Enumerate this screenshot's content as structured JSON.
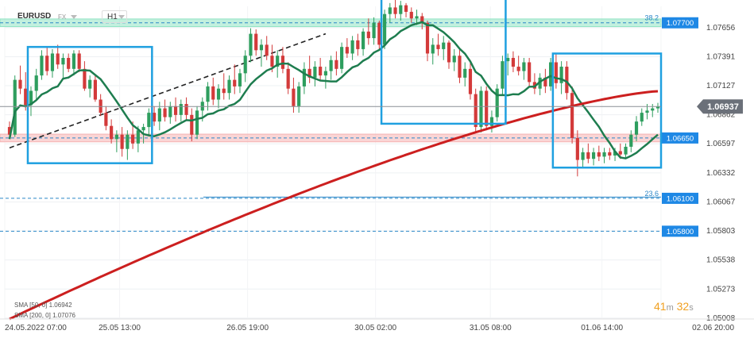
{
  "symbol": "EURUSD",
  "market": "FX",
  "timeframe": "H1",
  "countdown": {
    "minutes": "41",
    "min_unit": "m",
    "seconds": "32",
    "sec_unit": "s"
  },
  "colors": {
    "bull": "#2e9e5e",
    "bear": "#d33a3a",
    "sma50": "#1e7d4f",
    "sma200": "#cc1f1f",
    "box": "#1fa0e0",
    "resistance_zone": "#8fe3c3",
    "support_zone": "#f5b3b3",
    "label_bg": "#1e88e5"
  },
  "chart_data": {
    "type": "candlestick",
    "y_range": [
      1.05,
      1.0785
    ],
    "y_ticks": [
      "1.07656",
      "1.07391",
      "1.07127",
      "1.06862",
      "1.06597",
      "1.06332",
      "1.06067",
      "1.05803",
      "1.05538",
      "1.05273",
      "1.05008"
    ],
    "x_ticks": [
      "24.05.2022  07:00",
      "25.05  13:00",
      "26.05  19:00",
      "30.05  02:00",
      "31.05  08:00",
      "01.06  14:00",
      "02.06  20:00"
    ],
    "last_price": "1.06937",
    "levels": [
      {
        "value": 1.077,
        "label": "1.07700",
        "fib": "38.2"
      },
      {
        "value": 1.0665,
        "label": "1.06650",
        "fib": ""
      },
      {
        "value": 1.061,
        "label": "1.06100",
        "fib": "23.6"
      },
      {
        "value": 1.058,
        "label": "1.05800",
        "fib": ""
      }
    ],
    "indicators": [
      {
        "name": "SMA",
        "params": "[50,  0]",
        "value": "1.06942"
      },
      {
        "name": "SMA",
        "params": "[200,  0]",
        "value": "1.07076"
      }
    ],
    "candles": [
      [
        1.0675,
        1.068,
        1.0665,
        1.0668
      ],
      [
        1.0668,
        1.0722,
        1.0666,
        1.0718
      ],
      [
        1.0718,
        1.0731,
        1.0705,
        1.071
      ],
      [
        1.071,
        1.0725,
        1.069,
        1.0695
      ],
      [
        1.0695,
        1.0712,
        1.0685,
        1.0708
      ],
      [
        1.0708,
        1.0728,
        1.07,
        1.0722
      ],
      [
        1.0722,
        1.0745,
        1.0718,
        1.074
      ],
      [
        1.074,
        1.0748,
        1.0722,
        1.0726
      ],
      [
        1.0726,
        1.0746,
        1.072,
        1.0742
      ],
      [
        1.0742,
        1.075,
        1.0728,
        1.0732
      ],
      [
        1.0732,
        1.0742,
        1.072,
        1.0738
      ],
      [
        1.0738,
        1.0742,
        1.0725,
        1.0728
      ],
      [
        1.0728,
        1.0745,
        1.0722,
        1.0742
      ],
      [
        1.0742,
        1.0745,
        1.0725,
        1.0728
      ],
      [
        1.0728,
        1.0735,
        1.0708,
        1.071
      ],
      [
        1.071,
        1.0722,
        1.0702,
        1.0718
      ],
      [
        1.0718,
        1.0722,
        1.0698,
        1.07
      ],
      [
        1.07,
        1.0705,
        1.0685,
        1.0688
      ],
      [
        1.0688,
        1.0694,
        1.0672,
        1.0676
      ],
      [
        1.0676,
        1.0682,
        1.066,
        1.0664
      ],
      [
        1.0664,
        1.0672,
        1.0652,
        1.0668
      ],
      [
        1.0668,
        1.0675,
        1.0648,
        1.0655
      ],
      [
        1.0655,
        1.0672,
        1.0645,
        1.0668
      ],
      [
        1.0668,
        1.068,
        1.0655,
        1.066
      ],
      [
        1.066,
        1.0676,
        1.0652,
        1.0672
      ],
      [
        1.0672,
        1.0678,
        1.066,
        1.0675
      ],
      [
        1.0675,
        1.0692,
        1.0668,
        1.0688
      ],
      [
        1.0688,
        1.0694,
        1.0676,
        1.068
      ],
      [
        1.068,
        1.0698,
        1.0672,
        1.0692
      ],
      [
        1.0692,
        1.07,
        1.068,
        1.0684
      ],
      [
        1.0684,
        1.0698,
        1.0678,
        1.0694
      ],
      [
        1.0694,
        1.0702,
        1.068,
        1.0686
      ],
      [
        1.0686,
        1.07,
        1.068,
        1.0696
      ],
      [
        1.0696,
        1.0702,
        1.0682,
        1.0686
      ],
      [
        1.0686,
        1.0692,
        1.0662,
        1.0668
      ],
      [
        1.0668,
        1.0694,
        1.0664,
        1.069
      ],
      [
        1.069,
        1.0702,
        1.068,
        1.0698
      ],
      [
        1.0698,
        1.0716,
        1.069,
        1.0712
      ],
      [
        1.0712,
        1.072,
        1.0695,
        1.07
      ],
      [
        1.07,
        1.0714,
        1.0692,
        1.071
      ],
      [
        1.071,
        1.0724,
        1.07,
        1.0706
      ],
      [
        1.0706,
        1.0722,
        1.07,
        1.0718
      ],
      [
        1.0718,
        1.0732,
        1.0705,
        1.0712
      ],
      [
        1.0712,
        1.0728,
        1.0706,
        1.0724
      ],
      [
        1.0724,
        1.0745,
        1.0716,
        1.074
      ],
      [
        1.074,
        1.0765,
        1.0734,
        1.076
      ],
      [
        1.076,
        1.0764,
        1.074,
        1.0745
      ],
      [
        1.0745,
        1.0755,
        1.073,
        1.075
      ],
      [
        1.075,
        1.0758,
        1.0736,
        1.074
      ],
      [
        1.074,
        1.075,
        1.0725,
        1.073
      ],
      [
        1.073,
        1.0745,
        1.072,
        1.074
      ],
      [
        1.074,
        1.0748,
        1.0724,
        1.0728
      ],
      [
        1.0728,
        1.0734,
        1.0705,
        1.071
      ],
      [
        1.071,
        1.072,
        1.0688,
        1.0694
      ],
      [
        1.0694,
        1.0716,
        1.0688,
        1.0712
      ],
      [
        1.0712,
        1.0734,
        1.0705,
        1.0728
      ],
      [
        1.0728,
        1.074,
        1.0715,
        1.072
      ],
      [
        1.072,
        1.0735,
        1.0712,
        1.073
      ],
      [
        1.073,
        1.0738,
        1.0718,
        1.0722
      ],
      [
        1.0722,
        1.073,
        1.071,
        1.0726
      ],
      [
        1.0726,
        1.074,
        1.0718,
        1.0736
      ],
      [
        1.0736,
        1.0744,
        1.0722,
        1.0728
      ],
      [
        1.0728,
        1.0752,
        1.0724,
        1.0748
      ],
      [
        1.0748,
        1.0756,
        1.0738,
        1.0742
      ],
      [
        1.0742,
        1.0758,
        1.0736,
        1.0754
      ],
      [
        1.0754,
        1.076,
        1.074,
        1.0746
      ],
      [
        1.0746,
        1.0765,
        1.074,
        1.0762
      ],
      [
        1.0762,
        1.0774,
        1.075,
        1.0756
      ],
      [
        1.0756,
        1.0775,
        1.075,
        1.077
      ],
      [
        1.077,
        1.0772,
        1.0745,
        1.075
      ],
      [
        1.075,
        1.0782,
        1.0746,
        1.0778
      ],
      [
        1.0778,
        1.0788,
        1.077,
        1.0784
      ],
      [
        1.0784,
        1.0792,
        1.0774,
        1.0778
      ],
      [
        1.0778,
        1.079,
        1.0772,
        1.0786
      ],
      [
        1.0786,
        1.0788,
        1.0775,
        1.078
      ],
      [
        1.078,
        1.0784,
        1.077,
        1.0774
      ],
      [
        1.0774,
        1.0782,
        1.0768,
        1.0776
      ],
      [
        1.0776,
        1.0779,
        1.0764,
        1.077
      ],
      [
        1.077,
        1.0772,
        1.0735,
        1.0742
      ],
      [
        1.0742,
        1.0756,
        1.0732,
        1.075
      ],
      [
        1.075,
        1.076,
        1.074,
        1.0746
      ],
      [
        1.0746,
        1.0758,
        1.0736,
        1.0752
      ],
      [
        1.0752,
        1.0754,
        1.0728,
        1.0734
      ],
      [
        1.0734,
        1.0746,
        1.0726,
        1.074
      ],
      [
        1.074,
        1.0746,
        1.0715,
        1.072
      ],
      [
        1.072,
        1.0734,
        1.0712,
        1.0728
      ],
      [
        1.0728,
        1.0736,
        1.07,
        1.0705
      ],
      [
        1.0705,
        1.071,
        1.067,
        1.0675
      ],
      [
        1.0675,
        1.0712,
        1.067,
        1.0708
      ],
      [
        1.0708,
        1.0712,
        1.0672,
        1.0676
      ],
      [
        1.0676,
        1.069,
        1.067,
        1.0684
      ],
      [
        1.0684,
        1.0714,
        1.068,
        1.071
      ],
      [
        1.071,
        1.074,
        1.0705,
        1.0735
      ],
      [
        1.0735,
        1.0742,
        1.0722,
        1.0738
      ],
      [
        1.0738,
        1.0744,
        1.0725,
        1.073
      ],
      [
        1.073,
        1.074,
        1.0722,
        1.0726
      ],
      [
        1.0726,
        1.0738,
        1.0718,
        1.0734
      ],
      [
        1.0734,
        1.0738,
        1.0712,
        1.0716
      ],
      [
        1.0716,
        1.0724,
        1.0705,
        1.071
      ],
      [
        1.071,
        1.0724,
        1.0704,
        1.072
      ],
      [
        1.072,
        1.0728,
        1.0706,
        1.0712
      ],
      [
        1.0712,
        1.0738,
        1.0708,
        1.0734
      ],
      [
        1.0734,
        1.0742,
        1.071,
        1.0715
      ],
      [
        1.0715,
        1.0735,
        1.0705,
        1.073
      ],
      [
        1.073,
        1.0735,
        1.07,
        1.0706
      ],
      [
        1.0706,
        1.0712,
        1.066,
        1.0665
      ],
      [
        1.0665,
        1.0672,
        1.063,
        1.0645
      ],
      [
        1.0645,
        1.0656,
        1.0638,
        1.0652
      ],
      [
        1.0652,
        1.066,
        1.0642,
        1.0646
      ],
      [
        1.0646,
        1.0656,
        1.064,
        1.0652
      ],
      [
        1.0652,
        1.0658,
        1.0644,
        1.0648
      ],
      [
        1.0648,
        1.0656,
        1.0642,
        1.0652
      ],
      [
        1.0652,
        1.0656,
        1.0645,
        1.0649
      ],
      [
        1.0649,
        1.0656,
        1.0644,
        1.0653
      ],
      [
        1.0653,
        1.066,
        1.0646,
        1.065
      ],
      [
        1.065,
        1.066,
        1.0646,
        1.0657
      ],
      [
        1.0657,
        1.0672,
        1.0652,
        1.0668
      ],
      [
        1.0668,
        1.0685,
        1.0662,
        1.068
      ],
      [
        1.068,
        1.0692,
        1.0676,
        1.0688
      ],
      [
        1.0688,
        1.0696,
        1.0682,
        1.069
      ],
      [
        1.069,
        1.0696,
        1.0684,
        1.0692
      ],
      [
        1.0692,
        1.0697,
        1.0688,
        1.06937
      ]
    ]
  }
}
